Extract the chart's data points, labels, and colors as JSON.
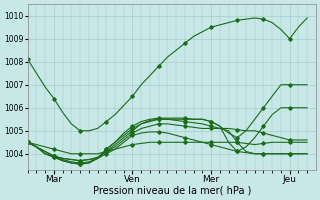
{
  "background_color": "#c8e8e8",
  "grid_color": "#a0c4c4",
  "line_color": "#1a6b1a",
  "xlabel": "Pression niveau de la mer( hPa )",
  "ylim": [
    1003.3,
    1010.5
  ],
  "yticks": [
    1004,
    1005,
    1006,
    1007,
    1008,
    1009,
    1010
  ],
  "xtick_labels": [
    "Mar",
    "Ven",
    "Mer",
    "Jeu"
  ],
  "xtick_positions": [
    3,
    12,
    21,
    30
  ],
  "xlim": [
    0,
    33
  ],
  "n_points": 33,
  "series": [
    [
      1008.1,
      1007.5,
      1006.9,
      1006.4,
      1005.8,
      1005.3,
      1005.0,
      1005.0,
      1005.1,
      1005.4,
      1005.7,
      1006.1,
      1006.5,
      1007.0,
      1007.4,
      1007.8,
      1008.2,
      1008.5,
      1008.8,
      1009.1,
      1009.3,
      1009.5,
      1009.6,
      1009.7,
      1009.8,
      1009.85,
      1009.9,
      1009.85,
      1009.7,
      1009.4,
      1009.0,
      1009.5,
      1009.9
    ],
    [
      1004.5,
      1004.4,
      1004.3,
      1004.2,
      1004.1,
      1004.0,
      1004.0,
      1004.0,
      1004.0,
      1004.1,
      1004.2,
      1004.3,
      1004.4,
      1004.45,
      1004.5,
      1004.5,
      1004.5,
      1004.5,
      1004.5,
      1004.5,
      1004.5,
      1004.5,
      1004.5,
      1004.5,
      1004.5,
      1004.45,
      1004.4,
      1004.45,
      1004.5,
      1004.5,
      1004.5,
      1004.5,
      1004.5
    ],
    [
      1004.5,
      1004.3,
      1004.1,
      1003.9,
      1003.8,
      1003.75,
      1003.7,
      1003.75,
      1003.8,
      1004.0,
      1004.2,
      1004.5,
      1004.8,
      1004.9,
      1004.95,
      1004.95,
      1004.9,
      1004.8,
      1004.7,
      1004.6,
      1004.5,
      1004.4,
      1004.3,
      1004.2,
      1004.1,
      1004.05,
      1004.0,
      1004.0,
      1004.0,
      1004.0,
      1004.0,
      1004.0,
      1004.0
    ],
    [
      1004.5,
      1004.3,
      1004.1,
      1003.9,
      1003.8,
      1003.75,
      1003.7,
      1003.75,
      1003.85,
      1004.1,
      1004.3,
      1004.6,
      1004.9,
      1005.1,
      1005.2,
      1005.3,
      1005.3,
      1005.25,
      1005.2,
      1005.15,
      1005.1,
      1005.1,
      1005.1,
      1005.1,
      1005.05,
      1005.0,
      1005.0,
      1004.9,
      1004.8,
      1004.7,
      1004.6,
      1004.6,
      1004.6
    ],
    [
      1004.5,
      1004.3,
      1004.0,
      1003.9,
      1003.75,
      1003.65,
      1003.6,
      1003.65,
      1003.8,
      1004.1,
      1004.4,
      1004.7,
      1005.0,
      1005.3,
      1005.4,
      1005.5,
      1005.5,
      1005.45,
      1005.4,
      1005.35,
      1005.3,
      1005.2,
      1005.1,
      1005.0,
      1004.5,
      1004.1,
      1004.0,
      1004.0,
      1004.0,
      1004.0,
      1004.0,
      1004.0,
      1004.0
    ],
    [
      1004.5,
      1004.3,
      1004.0,
      1003.85,
      1003.7,
      1003.6,
      1003.55,
      1003.6,
      1003.8,
      1004.2,
      1004.5,
      1004.8,
      1005.1,
      1005.3,
      1005.45,
      1005.5,
      1005.5,
      1005.5,
      1005.5,
      1005.5,
      1005.5,
      1005.4,
      1005.2,
      1004.5,
      1004.1,
      1004.3,
      1004.7,
      1005.2,
      1005.7,
      1006.0,
      1006.0,
      1006.0,
      1006.0
    ],
    [
      1004.5,
      1004.3,
      1004.0,
      1003.85,
      1003.7,
      1003.6,
      1003.55,
      1003.6,
      1003.8,
      1004.2,
      1004.5,
      1004.9,
      1005.2,
      1005.4,
      1005.5,
      1005.55,
      1005.55,
      1005.55,
      1005.55,
      1005.5,
      1005.5,
      1005.4,
      1005.2,
      1004.9,
      1004.7,
      1005.0,
      1005.5,
      1006.0,
      1006.5,
      1007.0,
      1007.0,
      1007.0,
      1007.0
    ]
  ]
}
